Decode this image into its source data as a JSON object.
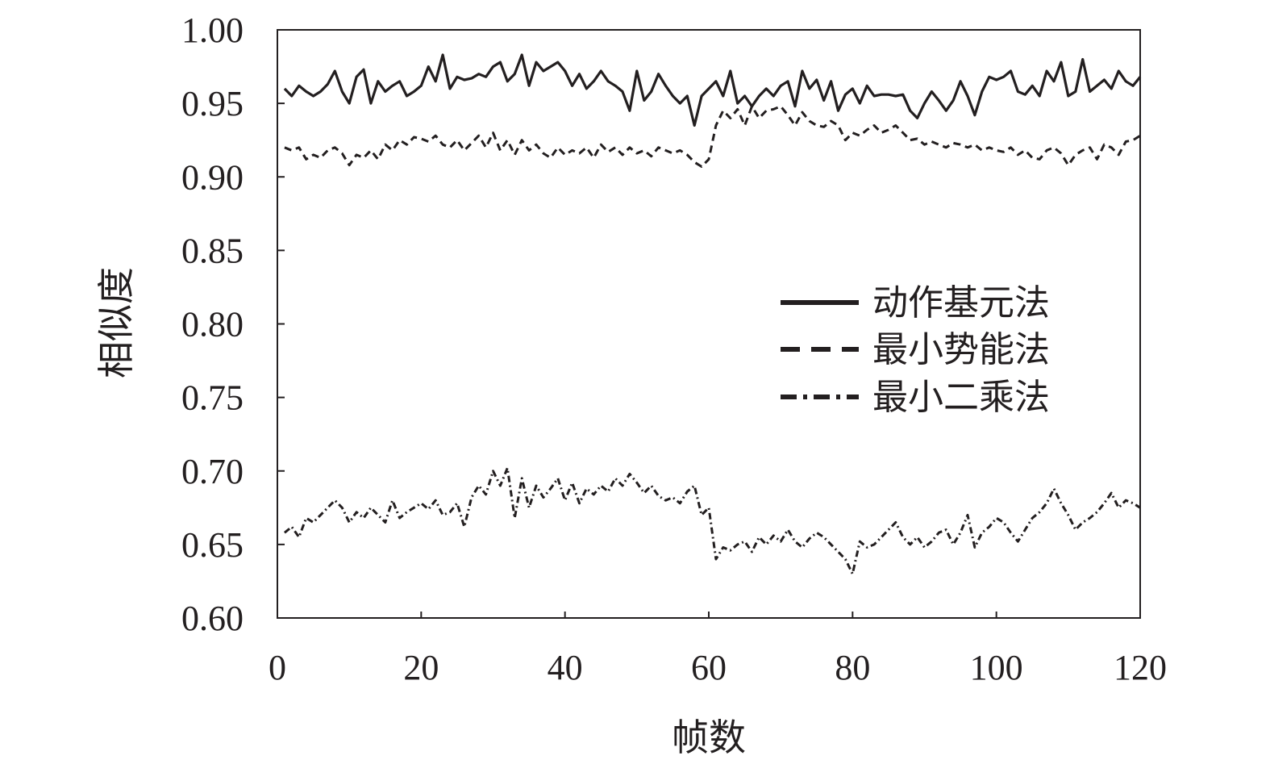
{
  "chart_data": {
    "type": "line",
    "xlabel": "帧数",
    "ylabel": "相似度",
    "xlim": [
      0,
      120
    ],
    "ylim": [
      0.6,
      1.0
    ],
    "x_ticks": [
      "0",
      "20",
      "40",
      "60",
      "80",
      "100",
      "120"
    ],
    "y_ticks": [
      "1.00",
      "0.95",
      "0.90",
      "0.85",
      "0.80",
      "0.75",
      "0.70",
      "0.65",
      "0.60"
    ],
    "grid": false,
    "legend_position": "right",
    "x": [
      1,
      2,
      3,
      4,
      5,
      6,
      7,
      8,
      9,
      10,
      11,
      12,
      13,
      14,
      15,
      16,
      17,
      18,
      19,
      20,
      21,
      22,
      23,
      24,
      25,
      26,
      27,
      28,
      29,
      30,
      31,
      32,
      33,
      34,
      35,
      36,
      37,
      38,
      39,
      40,
      41,
      42,
      43,
      44,
      45,
      46,
      47,
      48,
      49,
      50,
      51,
      52,
      53,
      54,
      55,
      56,
      57,
      58,
      59,
      60,
      61,
      62,
      63,
      64,
      65,
      66,
      67,
      68,
      69,
      70,
      71,
      72,
      73,
      74,
      75,
      76,
      77,
      78,
      79,
      80,
      81,
      82,
      83,
      84,
      85,
      86,
      87,
      88,
      89,
      90,
      91,
      92,
      93,
      94,
      95,
      96,
      97,
      98,
      99,
      100,
      101,
      102,
      103,
      104,
      105,
      106,
      107,
      108,
      109,
      110,
      111,
      112,
      113,
      114,
      115,
      116,
      117,
      118,
      119,
      120
    ],
    "series": [
      {
        "name": "动作基元法",
        "style": "solid",
        "color": "#231f20",
        "values": [
          0.96,
          0.955,
          0.962,
          0.958,
          0.955,
          0.958,
          0.963,
          0.972,
          0.958,
          0.95,
          0.968,
          0.973,
          0.95,
          0.965,
          0.958,
          0.962,
          0.965,
          0.955,
          0.958,
          0.962,
          0.975,
          0.965,
          0.983,
          0.96,
          0.968,
          0.966,
          0.967,
          0.97,
          0.968,
          0.975,
          0.978,
          0.965,
          0.97,
          0.983,
          0.962,
          0.978,
          0.972,
          0.975,
          0.978,
          0.972,
          0.962,
          0.97,
          0.96,
          0.965,
          0.972,
          0.965,
          0.962,
          0.958,
          0.945,
          0.972,
          0.952,
          0.958,
          0.97,
          0.962,
          0.955,
          0.95,
          0.955,
          0.935,
          0.955,
          0.96,
          0.965,
          0.955,
          0.972,
          0.95,
          0.955,
          0.948,
          0.955,
          0.96,
          0.955,
          0.962,
          0.965,
          0.948,
          0.972,
          0.96,
          0.966,
          0.952,
          0.965,
          0.945,
          0.956,
          0.96,
          0.95,
          0.962,
          0.955,
          0.956,
          0.956,
          0.955,
          0.956,
          0.945,
          0.94,
          0.95,
          0.958,
          0.952,
          0.945,
          0.952,
          0.965,
          0.955,
          0.942,
          0.958,
          0.968,
          0.966,
          0.968,
          0.972,
          0.958,
          0.956,
          0.962,
          0.955,
          0.972,
          0.965,
          0.978,
          0.955,
          0.958,
          0.98,
          0.958,
          0.962,
          0.966,
          0.96,
          0.972,
          0.965,
          0.962,
          0.968
        ]
      },
      {
        "name": "最小势能法",
        "style": "dashed",
        "color": "#231f20",
        "values": [
          0.92,
          0.918,
          0.92,
          0.912,
          0.915,
          0.913,
          0.918,
          0.92,
          0.916,
          0.908,
          0.915,
          0.913,
          0.918,
          0.912,
          0.922,
          0.918,
          0.925,
          0.922,
          0.927,
          0.926,
          0.924,
          0.928,
          0.922,
          0.92,
          0.925,
          0.918,
          0.923,
          0.928,
          0.92,
          0.93,
          0.918,
          0.925,
          0.915,
          0.925,
          0.918,
          0.922,
          0.916,
          0.913,
          0.92,
          0.915,
          0.918,
          0.916,
          0.92,
          0.913,
          0.922,
          0.917,
          0.92,
          0.915,
          0.92,
          0.916,
          0.918,
          0.914,
          0.92,
          0.918,
          0.916,
          0.918,
          0.915,
          0.91,
          0.907,
          0.912,
          0.935,
          0.945,
          0.94,
          0.946,
          0.935,
          0.948,
          0.94,
          0.945,
          0.946,
          0.948,
          0.942,
          0.935,
          0.944,
          0.938,
          0.935,
          0.934,
          0.938,
          0.935,
          0.925,
          0.93,
          0.928,
          0.932,
          0.935,
          0.93,
          0.932,
          0.935,
          0.93,
          0.925,
          0.926,
          0.922,
          0.924,
          0.922,
          0.92,
          0.923,
          0.922,
          0.92,
          0.922,
          0.918,
          0.92,
          0.918,
          0.917,
          0.92,
          0.915,
          0.918,
          0.913,
          0.912,
          0.918,
          0.92,
          0.916,
          0.908,
          0.915,
          0.918,
          0.92,
          0.912,
          0.922,
          0.92,
          0.915,
          0.924,
          0.925,
          0.928
        ]
      },
      {
        "name": "最小二乘法",
        "style": "dashdot",
        "color": "#231f20",
        "values": [
          0.658,
          0.662,
          0.655,
          0.668,
          0.665,
          0.67,
          0.675,
          0.68,
          0.675,
          0.665,
          0.672,
          0.668,
          0.675,
          0.67,
          0.665,
          0.68,
          0.668,
          0.672,
          0.675,
          0.678,
          0.674,
          0.68,
          0.67,
          0.672,
          0.678,
          0.662,
          0.682,
          0.69,
          0.684,
          0.7,
          0.69,
          0.702,
          0.668,
          0.695,
          0.675,
          0.69,
          0.682,
          0.688,
          0.695,
          0.68,
          0.692,
          0.678,
          0.688,
          0.684,
          0.69,
          0.686,
          0.695,
          0.69,
          0.698,
          0.692,
          0.685,
          0.69,
          0.683,
          0.68,
          0.682,
          0.678,
          0.686,
          0.69,
          0.67,
          0.675,
          0.64,
          0.648,
          0.646,
          0.65,
          0.652,
          0.645,
          0.655,
          0.65,
          0.656,
          0.652,
          0.66,
          0.652,
          0.648,
          0.654,
          0.658,
          0.655,
          0.65,
          0.645,
          0.64,
          0.63,
          0.652,
          0.648,
          0.65,
          0.655,
          0.66,
          0.665,
          0.655,
          0.65,
          0.655,
          0.648,
          0.652,
          0.658,
          0.66,
          0.65,
          0.658,
          0.67,
          0.648,
          0.658,
          0.662,
          0.668,
          0.665,
          0.658,
          0.652,
          0.66,
          0.668,
          0.672,
          0.678,
          0.688,
          0.678,
          0.67,
          0.66,
          0.665,
          0.668,
          0.672,
          0.678,
          0.685,
          0.675,
          0.68,
          0.678,
          0.675
        ]
      }
    ]
  }
}
